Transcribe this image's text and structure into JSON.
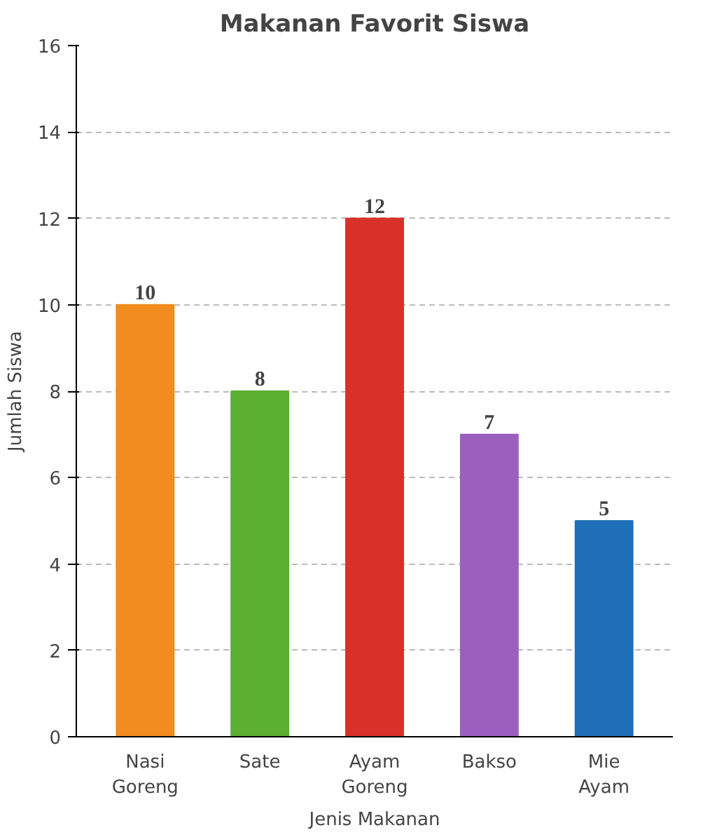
{
  "chart_data": {
    "type": "bar",
    "title": "Makanan Favorit Siswa",
    "xlabel": "Jenis Makanan",
    "ylabel": "Jumlah Siswa",
    "categories": [
      "Nasi\nGoreng",
      "Sate",
      "Ayam\nGoreng",
      "Bakso",
      "Mie\nAyam"
    ],
    "values": [
      10,
      8,
      12,
      7,
      5
    ],
    "colors": [
      "#f28c1e",
      "#5aae32",
      "#d9302a",
      "#9b5fc0",
      "#1f6fb8"
    ],
    "ylim": [
      0,
      16
    ],
    "yticks": [
      0,
      2,
      4,
      6,
      8,
      10,
      12,
      14,
      16
    ],
    "grid": "y",
    "data_labels": true
  }
}
